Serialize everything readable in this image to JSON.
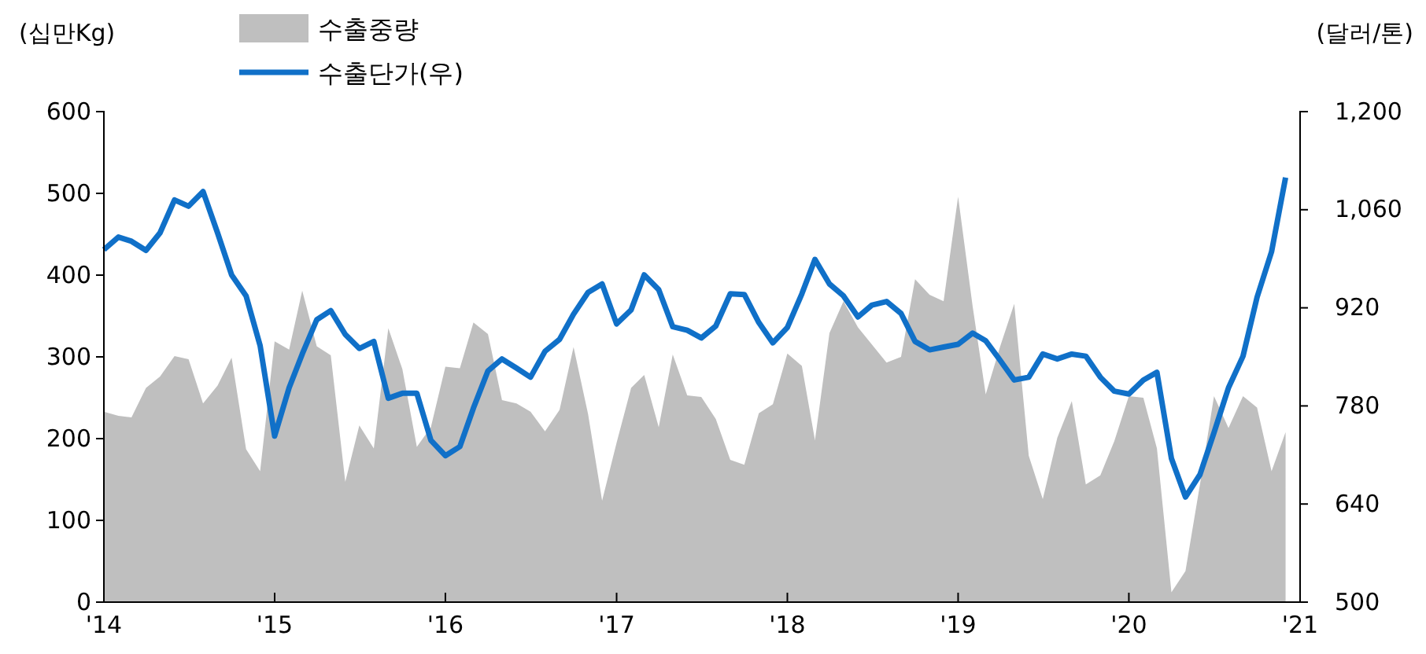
{
  "chart_data": {
    "type": "line",
    "ylabel": "(십만Kg)",
    "y2label": "(달러/톤)",
    "legend": "top",
    "x": [
      "2014-01",
      "2014-02",
      "2014-03",
      "2014-04",
      "2014-05",
      "2014-06",
      "2014-07",
      "2014-08",
      "2014-09",
      "2014-10",
      "2014-11",
      "2014-12",
      "2015-01",
      "2015-02",
      "2015-03",
      "2015-04",
      "2015-05",
      "2015-06",
      "2015-07",
      "2015-08",
      "2015-09",
      "2015-10",
      "2015-11",
      "2015-12",
      "2016-01",
      "2016-02",
      "2016-03",
      "2016-04",
      "2016-05",
      "2016-06",
      "2016-07",
      "2016-08",
      "2016-09",
      "2016-10",
      "2016-11",
      "2016-12",
      "2017-01",
      "2017-02",
      "2017-03",
      "2017-04",
      "2017-05",
      "2017-06",
      "2017-07",
      "2017-08",
      "2017-09",
      "2017-10",
      "2017-11",
      "2017-12",
      "2018-01",
      "2018-02",
      "2018-03",
      "2018-04",
      "2018-05",
      "2018-06",
      "2018-07",
      "2018-08",
      "2018-09",
      "2018-10",
      "2018-11",
      "2018-12",
      "2019-01",
      "2019-02",
      "2019-03",
      "2019-04",
      "2019-05",
      "2019-06",
      "2019-07",
      "2019-08",
      "2019-09",
      "2019-10",
      "2019-11",
      "2019-12",
      "2020-01",
      "2020-02",
      "2020-03",
      "2020-04",
      "2020-05",
      "2020-06",
      "2020-07",
      "2020-08",
      "2020-09",
      "2020-10",
      "2020-11",
      "2020-12"
    ],
    "series": [
      {
        "name": "수출중량",
        "type": "area",
        "color": "#bfbfbf",
        "values": [
          233,
          228,
          226,
          262,
          276,
          301,
          297,
          243,
          265,
          299,
          187,
          160,
          319,
          309,
          381,
          313,
          302,
          147,
          216,
          188,
          335,
          285,
          190,
          214,
          288,
          286,
          342,
          328,
          247,
          243,
          233,
          209,
          235,
          312,
          230,
          124,
          195,
          262,
          278,
          214,
          303,
          253,
          251,
          224,
          174,
          168,
          231,
          242,
          304,
          289,
          198,
          329,
          368,
          336,
          315,
          293,
          300,
          395,
          376,
          368,
          496,
          362,
          254,
          313,
          365,
          179,
          126,
          201,
          246,
          144,
          155,
          197,
          252,
          250,
          188,
          12,
          38,
          144,
          252,
          213,
          252,
          238,
          160,
          208
        ]
      },
      {
        "name": "수출단가(우)",
        "axis": "y2",
        "color": "#1070c8",
        "values": [
          1003,
          1021,
          1015,
          1002,
          1027,
          1074,
          1065,
          1086,
          1027,
          967,
          937,
          866,
          737,
          806,
          854,
          903,
          916,
          882,
          862,
          872,
          791,
          798,
          798,
          731,
          709,
          722,
          777,
          830,
          847,
          834,
          821,
          858,
          875,
          911,
          942,
          954,
          897,
          917,
          967,
          946,
          893,
          888,
          877,
          894,
          940,
          939,
          899,
          870,
          892,
          940,
          989,
          954,
          937,
          907,
          924,
          929,
          912,
          872,
          860,
          864,
          868,
          884,
          873,
          845,
          817,
          821,
          854,
          847,
          854,
          851,
          821,
          801,
          797,
          817,
          828,
          705,
          650,
          682,
          742,
          806,
          851,
          935,
          1000,
          1106
        ]
      }
    ],
    "xlim": [
      "2014-01",
      "2021-01"
    ],
    "xticks": [
      {
        "value": "2014-01",
        "label": "'14"
      },
      {
        "value": "2015-01",
        "label": "'15"
      },
      {
        "value": "2016-01",
        "label": "'16"
      },
      {
        "value": "2017-01",
        "label": "'17"
      },
      {
        "value": "2018-01",
        "label": "'18"
      },
      {
        "value": "2019-01",
        "label": "'19"
      },
      {
        "value": "2020-01",
        "label": "'20"
      },
      {
        "value": "2021-01",
        "label": "'21"
      }
    ],
    "ylim": [
      0,
      600
    ],
    "yticks": [
      0,
      100,
      200,
      300,
      400,
      500,
      600
    ],
    "y2lim": [
      500,
      1200
    ],
    "y2ticks": [
      500,
      640,
      780,
      920,
      {
        "value": 1060,
        "label": "1,060"
      },
      {
        "value": 1200,
        "label": "1,200"
      }
    ]
  }
}
